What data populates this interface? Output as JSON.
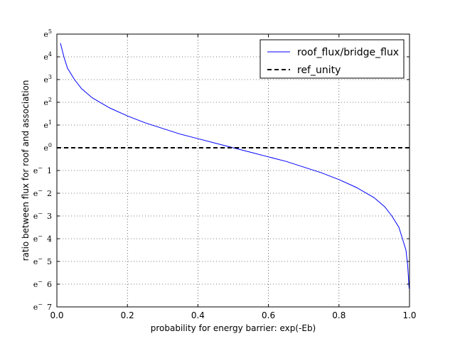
{
  "chart_data": {
    "type": "line",
    "xlabel": "probability for energy barrier: exp(-Eb)",
    "ylabel": "ratio between flux for roof and association",
    "xlim": [
      0.0,
      1.0
    ],
    "ylim": [
      -7,
      5
    ],
    "y_scale": "natural log (ticks shown as powers of e)",
    "grid": true,
    "legend_position": "top-right",
    "x_ticks": [
      {
        "value": 0.0,
        "label": "0.0"
      },
      {
        "value": 0.2,
        "label": "0.2"
      },
      {
        "value": 0.4,
        "label": "0.4"
      },
      {
        "value": 0.6,
        "label": "0.6"
      },
      {
        "value": 0.8,
        "label": "0.8"
      },
      {
        "value": 1.0,
        "label": "1.0"
      }
    ],
    "y_ticks": [
      {
        "value": 5,
        "base": "e",
        "exp": "5"
      },
      {
        "value": 4,
        "base": "e",
        "exp": "4"
      },
      {
        "value": 3,
        "base": "e",
        "exp": "3"
      },
      {
        "value": 2,
        "base": "e",
        "exp": "2"
      },
      {
        "value": 1,
        "base": "e",
        "exp": "1"
      },
      {
        "value": 0,
        "base": "e",
        "exp": "0"
      },
      {
        "value": -1,
        "base": "e",
        "exp": "−",
        "tail": "1"
      },
      {
        "value": -2,
        "base": "e",
        "exp": "−",
        "tail": "2"
      },
      {
        "value": -3,
        "base": "e",
        "exp": "−",
        "tail": "3"
      },
      {
        "value": -4,
        "base": "e",
        "exp": "−",
        "tail": "4"
      },
      {
        "value": -5,
        "base": "e",
        "exp": "−",
        "tail": "5"
      },
      {
        "value": -6,
        "base": "e",
        "exp": "−",
        "tail": "6"
      },
      {
        "value": -7,
        "base": "e",
        "exp": "−",
        "tail": "7"
      }
    ],
    "series": [
      {
        "name": "roof_flux/bridge_flux",
        "color": "#0000ff",
        "style": "solid",
        "x": [
          0.01,
          0.02,
          0.03,
          0.05,
          0.07,
          0.1,
          0.15,
          0.2,
          0.25,
          0.3,
          0.35,
          0.4,
          0.45,
          0.5,
          0.55,
          0.6,
          0.65,
          0.7,
          0.75,
          0.8,
          0.85,
          0.9,
          0.93,
          0.95,
          0.97,
          0.98,
          0.99,
          0.995,
          0.999
        ],
        "y": [
          4.6,
          4.0,
          3.5,
          3.0,
          2.6,
          2.2,
          1.75,
          1.4,
          1.1,
          0.85,
          0.6,
          0.4,
          0.2,
          0.0,
          -0.2,
          -0.4,
          -0.6,
          -0.85,
          -1.1,
          -1.4,
          -1.75,
          -2.2,
          -2.6,
          -3.0,
          -3.5,
          -4.0,
          -4.5,
          -5.2,
          -6.2
        ]
      },
      {
        "name": "ref_unity",
        "color": "#000000",
        "style": "dashed",
        "x": [
          0.0,
          1.0
        ],
        "y": [
          0,
          0
        ]
      }
    ]
  }
}
